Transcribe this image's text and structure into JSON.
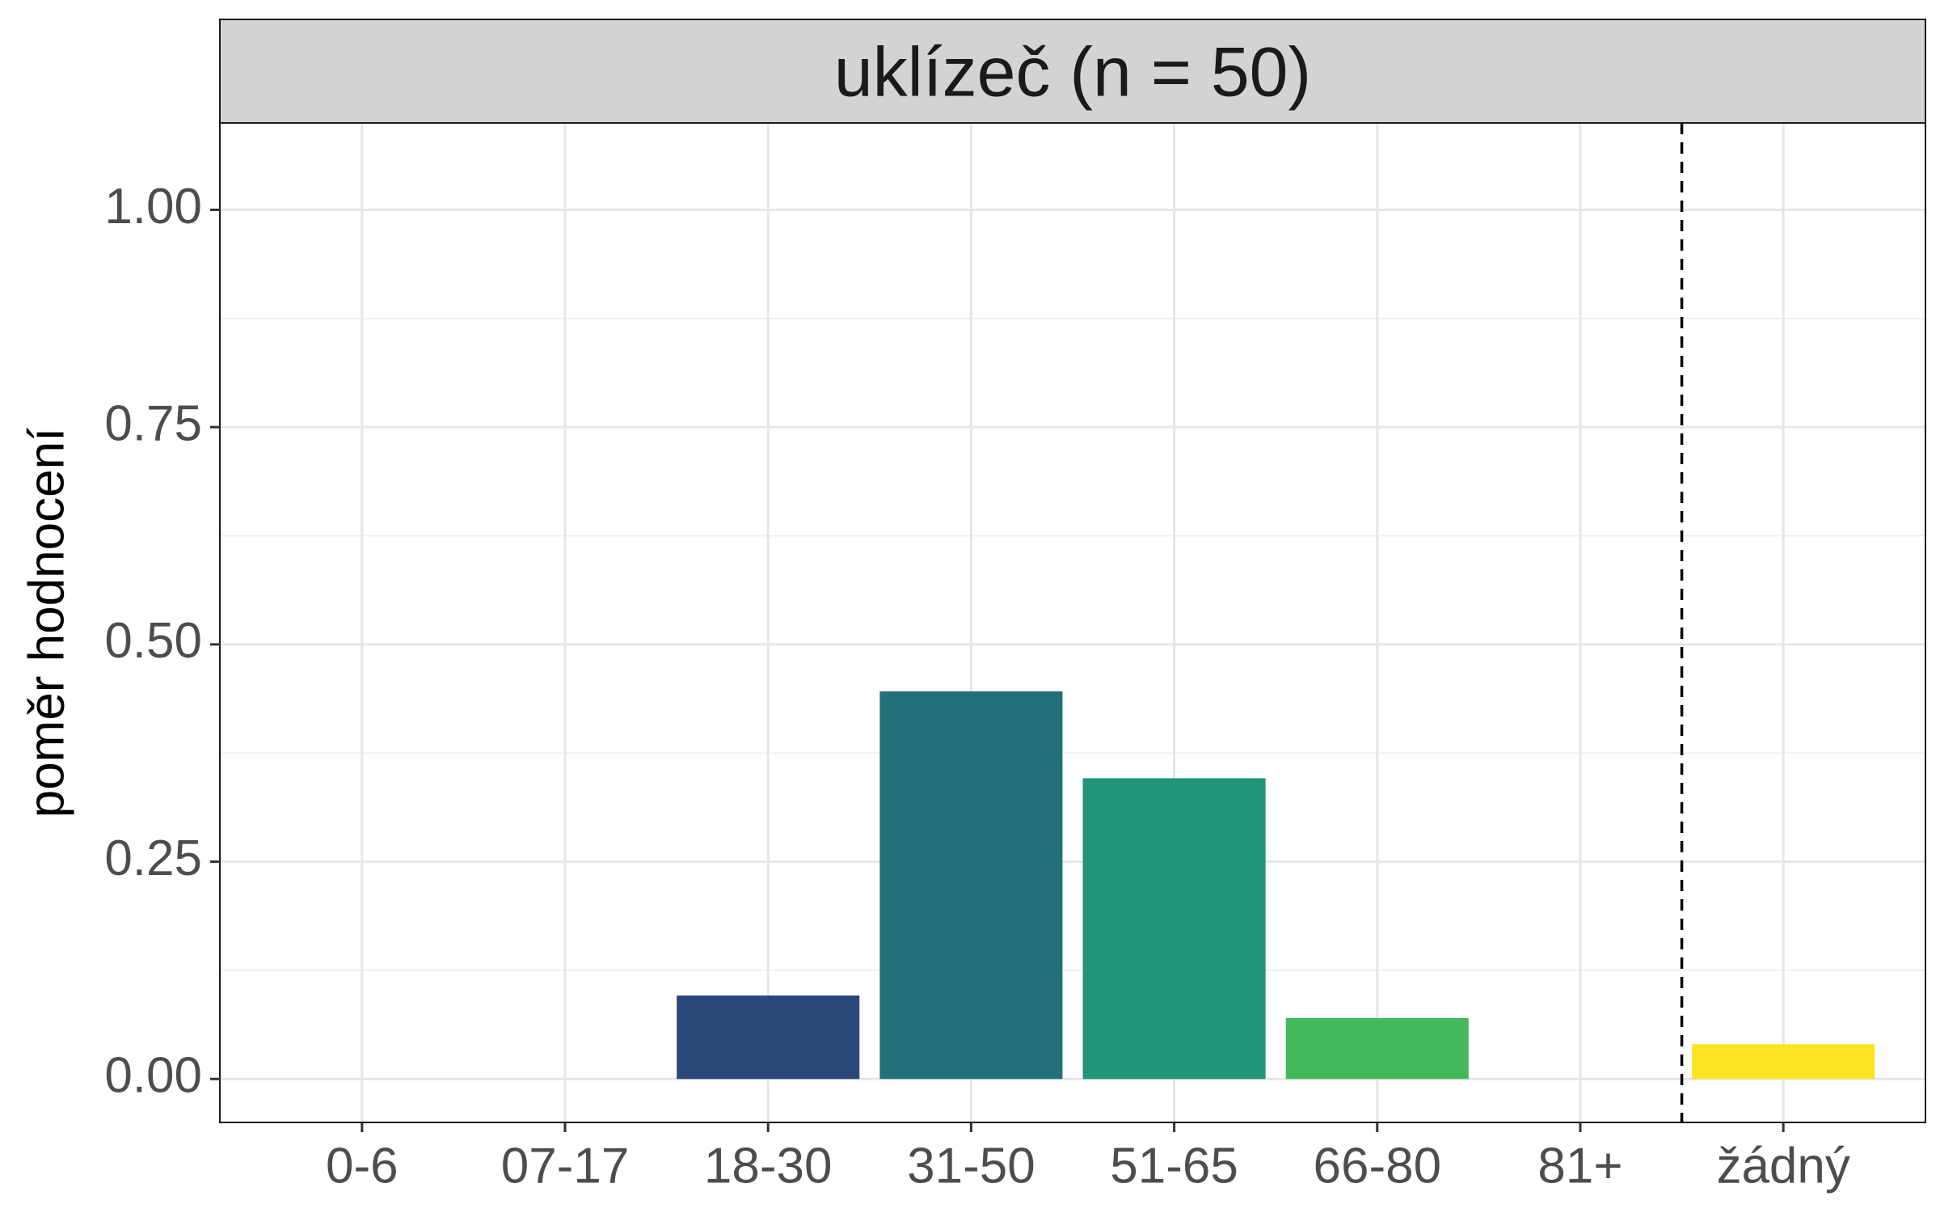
{
  "chart_data": {
    "type": "bar",
    "facet_title": "uklízeč (n = 50)",
    "ylabel": "poměr hodnocení",
    "xlabel": "",
    "categories": [
      "0-6",
      "07-17",
      "18-30",
      "31-50",
      "51-65",
      "66-80",
      "81+",
      "žádný"
    ],
    "values": [
      0,
      0,
      0.096,
      0.446,
      0.346,
      0.07,
      0,
      0.04
    ],
    "bar_colors": [
      "#440154",
      "#46327e",
      "#2a477a",
      "#21707c",
      "#219578",
      "#42b85b",
      "#a0da39",
      "#fde21f"
    ],
    "ylim": [
      -0.05,
      1.1
    ],
    "yticks": [
      "0.00",
      "0.25",
      "0.50",
      "0.75",
      "1.00"
    ],
    "ytick_values": [
      0,
      0.25,
      0.5,
      0.75,
      1.0
    ],
    "reference_line": {
      "style": "dashed",
      "between": [
        "81+",
        "žádný"
      ]
    },
    "grid": true,
    "legend": "none"
  }
}
